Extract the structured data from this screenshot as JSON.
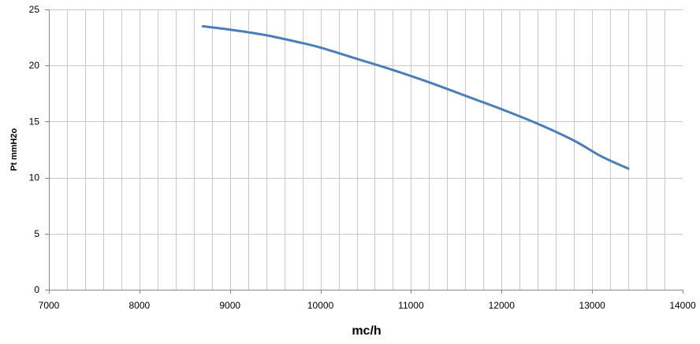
{
  "chart_data": {
    "type": "line",
    "title": "",
    "xlabel": "mc/h",
    "ylabel": "Pt mmH2o",
    "xlim": [
      7000,
      14000
    ],
    "ylim": [
      0,
      25
    ],
    "x_ticks": [
      7000,
      8000,
      9000,
      10000,
      11000,
      12000,
      13000,
      14000
    ],
    "x_tick_labels": [
      "7000",
      "8000",
      "9000",
      "10000",
      "11000",
      "12000",
      "13000",
      "14000"
    ],
    "y_ticks": [
      0,
      5,
      10,
      15,
      20,
      25
    ],
    "y_tick_labels": [
      "0",
      "5",
      "10",
      "15",
      "20",
      "25"
    ],
    "x_minor_step": 200,
    "grid": true,
    "legend": "none",
    "series": [
      {
        "color": "#4a7ebb",
        "x": [
          8700,
          9000,
          9400,
          9800,
          10000,
          10400,
          10800,
          11200,
          11600,
          12000,
          12400,
          12800,
          13100,
          13400
        ],
        "y": [
          23.5,
          23.2,
          22.7,
          22.0,
          21.6,
          20.6,
          19.6,
          18.5,
          17.3,
          16.1,
          14.8,
          13.3,
          11.9,
          10.8
        ]
      }
    ]
  }
}
